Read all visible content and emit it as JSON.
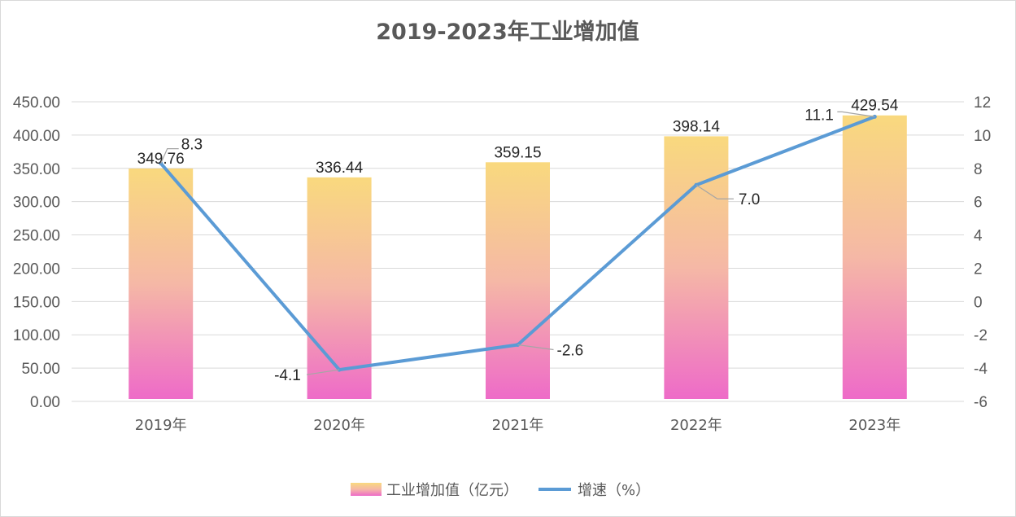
{
  "chart_data": {
    "type": "bar",
    "title": "2019-2023年工业增加值",
    "categories": [
      "2019年",
      "2020年",
      "2021年",
      "2022年",
      "2023年"
    ],
    "series": [
      {
        "name": "工业增加值（亿元）",
        "type": "bar",
        "axis": "left",
        "values": [
          349.76,
          336.44,
          359.15,
          398.14,
          429.54
        ],
        "labels": [
          "349.76",
          "336.44",
          "359.15",
          "398.14",
          "429.54"
        ]
      },
      {
        "name": "增速（%）",
        "type": "line",
        "axis": "right",
        "values": [
          8.3,
          -4.1,
          -2.6,
          7.0,
          11.1
        ],
        "labels": [
          "8.3",
          "-4.1",
          "-2.6",
          "7.0",
          "11.1"
        ]
      }
    ],
    "y_left": {
      "min": 0,
      "max": 450,
      "step": 50,
      "ticks": [
        "0.00",
        "50.00",
        "100.00",
        "150.00",
        "200.00",
        "250.00",
        "300.00",
        "350.00",
        "400.00",
        "450.00"
      ]
    },
    "y_right": {
      "min": -6,
      "max": 12,
      "step": 2,
      "ticks": [
        "-6",
        "-4",
        "-2",
        "0",
        "2",
        "4",
        "6",
        "8",
        "10",
        "12"
      ]
    },
    "grid": true,
    "legend_position": "bottom",
    "colors": {
      "bar_top": "#f9d97e",
      "bar_bottom": "#ee6bc8",
      "line": "#5b9bd5",
      "grid": "#d9d9d9",
      "text": "#595959"
    }
  }
}
